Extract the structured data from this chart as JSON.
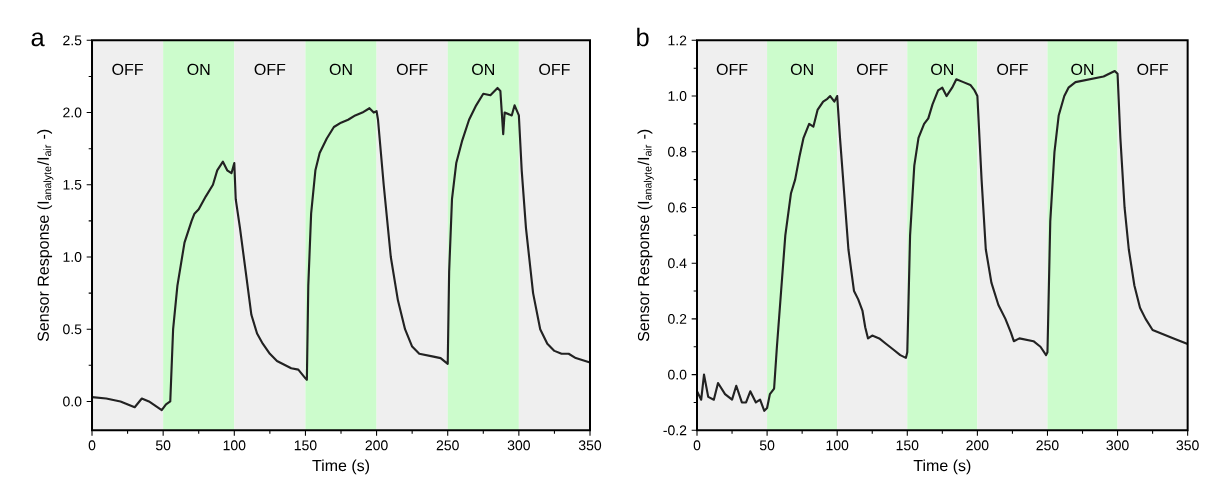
{
  "chart_data": [
    {
      "type": "line",
      "title": "a",
      "xlabel": "Time (s)",
      "ylabel": "Sensor Response (I$_{analyte}$/I$_{air}$ -)",
      "xlim": [
        0,
        350
      ],
      "xticks": [
        0,
        50,
        100,
        150,
        200,
        250,
        300,
        350
      ],
      "ylim": [
        -0.2,
        2.5
      ],
      "yticks": [
        {
          "value": 0,
          "label": "0.0"
        },
        {
          "value": 0.5,
          "label": "0.5"
        },
        {
          "value": 1,
          "label": "1.0"
        },
        {
          "value": 1.5,
          "label": "1.5"
        },
        {
          "value": 2,
          "label": "2.0"
        },
        {
          "value": 2.5,
          "label": "2.5"
        }
      ],
      "bands": [
        {
          "axis": "x",
          "from": 0,
          "to": 50,
          "label": "OFF",
          "color": "#efefef"
        },
        {
          "axis": "x",
          "from": 50,
          "to": 100,
          "label": "ON",
          "color": "#ccfccc"
        },
        {
          "axis": "x",
          "from": 100,
          "to": 150,
          "label": "OFF",
          "color": "#efefef"
        },
        {
          "axis": "x",
          "from": 150,
          "to": 200,
          "label": "ON",
          "color": "#ccfccc"
        },
        {
          "axis": "x",
          "from": 200,
          "to": 250,
          "label": "OFF",
          "color": "#efefef"
        },
        {
          "axis": "x",
          "from": 250,
          "to": 300,
          "label": "ON",
          "color": "#ccfccc"
        },
        {
          "axis": "x",
          "from": 300,
          "to": 350,
          "label": "OFF",
          "color": "#efefef"
        }
      ],
      "series": [
        {
          "color": "#222222",
          "x": [
            0,
            10,
            20,
            30,
            35,
            40,
            49,
            52,
            55,
            57,
            60,
            65,
            70,
            72,
            75,
            80,
            85,
            88,
            92,
            95,
            98,
            100,
            101,
            104,
            108,
            112,
            116,
            120,
            125,
            130,
            140,
            145,
            150,
            151,
            152,
            154,
            157,
            160,
            165,
            170,
            175,
            180,
            185,
            190,
            195,
            198,
            200,
            201,
            205,
            210,
            215,
            220,
            225,
            230,
            240,
            245,
            250,
            251,
            253,
            256,
            260,
            265,
            270,
            275,
            280,
            285,
            287,
            289,
            290,
            295,
            297,
            300,
            302,
            305,
            310,
            315,
            320,
            325,
            330,
            335,
            340,
            350
          ],
          "values": [
            0.03,
            0.02,
            0.0,
            -0.04,
            0.02,
            0.0,
            -0.06,
            -0.02,
            0.0,
            0.5,
            0.8,
            1.1,
            1.25,
            1.3,
            1.33,
            1.42,
            1.5,
            1.6,
            1.66,
            1.6,
            1.58,
            1.65,
            1.4,
            1.2,
            0.9,
            0.6,
            0.47,
            0.4,
            0.33,
            0.28,
            0.23,
            0.22,
            0.16,
            0.15,
            0.8,
            1.3,
            1.6,
            1.72,
            1.82,
            1.9,
            1.93,
            1.95,
            1.98,
            2.0,
            2.03,
            2.0,
            2.01,
            1.95,
            1.5,
            1.0,
            0.7,
            0.5,
            0.38,
            0.33,
            0.31,
            0.3,
            0.26,
            0.9,
            1.4,
            1.65,
            1.8,
            1.95,
            2.05,
            2.13,
            2.12,
            2.17,
            2.15,
            1.85,
            2.0,
            1.98,
            2.05,
            1.98,
            1.6,
            1.2,
            0.75,
            0.5,
            0.4,
            0.35,
            0.33,
            0.33,
            0.3,
            0.27
          ]
        }
      ]
    },
    {
      "type": "line",
      "title": "b",
      "xlabel": "Time (s)",
      "ylabel": "Sensor Response (I$_{analyte}$/I$_{air}$ -)",
      "xlim": [
        0,
        350
      ],
      "xticks": [
        0,
        50,
        100,
        150,
        200,
        250,
        300,
        350
      ],
      "ylim": [
        -0.2,
        1.2
      ],
      "yticks": [
        {
          "value": -0.2,
          "label": "-0.2"
        },
        {
          "value": 0,
          "label": "0.0"
        },
        {
          "value": 0.2,
          "label": "0.2"
        },
        {
          "value": 0.4,
          "label": "0.4"
        },
        {
          "value": 0.6,
          "label": "0.6"
        },
        {
          "value": 0.8,
          "label": "0.8"
        },
        {
          "value": 1,
          "label": "1.0"
        },
        {
          "value": 1.2,
          "label": "1.2"
        }
      ],
      "bands": [
        {
          "axis": "x",
          "from": 0,
          "to": 50,
          "label": "OFF",
          "color": "#efefef"
        },
        {
          "axis": "x",
          "from": 50,
          "to": 100,
          "label": "ON",
          "color": "#ccfccc"
        },
        {
          "axis": "x",
          "from": 100,
          "to": 150,
          "label": "OFF",
          "color": "#efefef"
        },
        {
          "axis": "x",
          "from": 150,
          "to": 200,
          "label": "ON",
          "color": "#ccfccc"
        },
        {
          "axis": "x",
          "from": 200,
          "to": 250,
          "label": "OFF",
          "color": "#efefef"
        },
        {
          "axis": "x",
          "from": 250,
          "to": 300,
          "label": "ON",
          "color": "#ccfccc"
        },
        {
          "axis": "x",
          "from": 300,
          "to": 350,
          "label": "OFF",
          "color": "#efefef"
        }
      ],
      "series": [
        {
          "color": "#222222",
          "x": [
            0,
            3,
            5,
            8,
            12,
            15,
            20,
            25,
            28,
            32,
            35,
            38,
            42,
            45,
            48,
            50,
            52,
            55,
            57,
            60,
            63,
            67,
            70,
            73,
            76,
            80,
            83,
            86,
            90,
            93,
            95,
            98,
            100,
            102,
            105,
            108,
            112,
            115,
            118,
            120,
            122,
            125,
            130,
            135,
            140,
            145,
            149,
            150,
            152,
            155,
            158,
            162,
            165,
            168,
            172,
            175,
            178,
            182,
            185,
            190,
            195,
            198,
            200,
            203,
            206,
            210,
            215,
            220,
            224,
            226,
            230,
            240,
            245,
            249,
            250,
            252,
            255,
            258,
            262,
            265,
            270,
            280,
            290,
            298,
            300,
            302,
            305,
            308,
            312,
            316,
            320,
            325,
            330,
            340,
            350
          ],
          "values": [
            -0.06,
            -0.09,
            0.0,
            -0.08,
            -0.09,
            -0.03,
            -0.07,
            -0.09,
            -0.04,
            -0.1,
            -0.1,
            -0.06,
            -0.1,
            -0.09,
            -0.13,
            -0.12,
            -0.07,
            -0.05,
            0.1,
            0.3,
            0.5,
            0.65,
            0.7,
            0.78,
            0.85,
            0.9,
            0.89,
            0.95,
            0.98,
            0.99,
            1.0,
            0.98,
            1.0,
            0.85,
            0.65,
            0.45,
            0.3,
            0.27,
            0.23,
            0.17,
            0.13,
            0.14,
            0.13,
            0.11,
            0.09,
            0.07,
            0.06,
            0.08,
            0.5,
            0.75,
            0.85,
            0.9,
            0.92,
            0.97,
            1.02,
            1.03,
            1.0,
            1.03,
            1.06,
            1.05,
            1.04,
            1.02,
            1.0,
            0.7,
            0.45,
            0.33,
            0.25,
            0.2,
            0.15,
            0.12,
            0.13,
            0.12,
            0.1,
            0.07,
            0.08,
            0.55,
            0.8,
            0.93,
            1.0,
            1.03,
            1.05,
            1.06,
            1.07,
            1.09,
            1.08,
            0.85,
            0.6,
            0.45,
            0.32,
            0.24,
            0.2,
            0.16,
            0.15,
            0.13,
            0.11
          ]
        }
      ]
    }
  ]
}
